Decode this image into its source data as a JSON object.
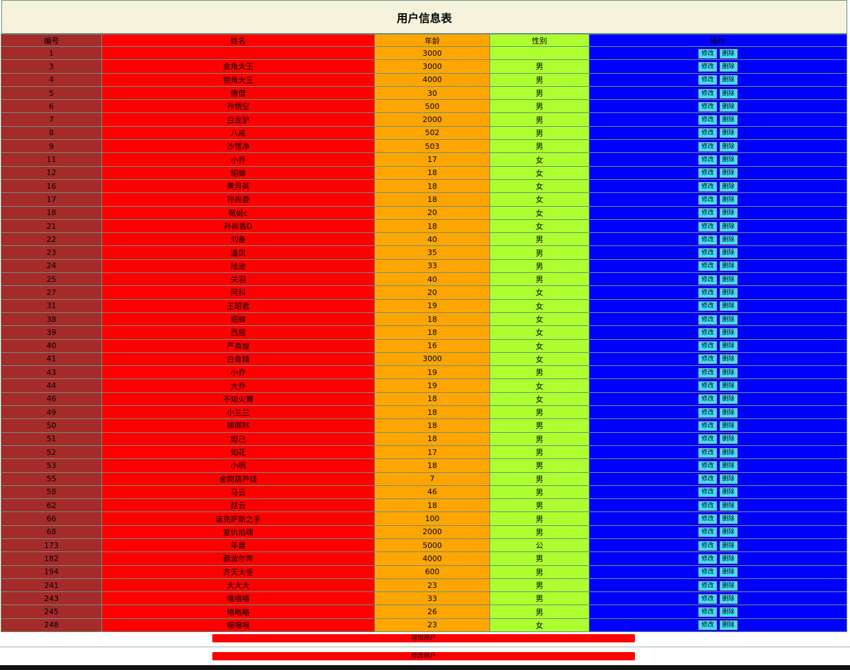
{
  "header": {
    "title": "用户信息表"
  },
  "table": {
    "columns": [
      "编号",
      "姓名",
      "年龄",
      "性别",
      "操作"
    ],
    "actions": [
      "修改",
      "删除"
    ],
    "rows": [
      [
        1,
        null,
        3000,
        null
      ],
      [
        3,
        "金角大王",
        3000,
        "男"
      ],
      [
        4,
        "银角大王",
        4000,
        "男"
      ],
      [
        5,
        "唐僧",
        30,
        "男"
      ],
      [
        6,
        "孙悟空",
        500,
        "男"
      ],
      [
        7,
        "白龙驴",
        2000,
        "男"
      ],
      [
        8,
        "八戒",
        502,
        "男"
      ],
      [
        9,
        "沙悟净",
        503,
        "男"
      ],
      [
        11,
        "小乔",
        17,
        "女"
      ],
      [
        12,
        "貂蝉",
        18,
        "女"
      ],
      [
        16,
        "黄月英",
        18,
        "女"
      ],
      [
        17,
        "孙尚香",
        18,
        "女"
      ],
      [
        18,
        "甄姬c",
        20,
        "女"
      ],
      [
        21,
        "孙尚香D",
        18,
        "女"
      ],
      [
        22,
        "刘备",
        40,
        "男"
      ],
      [
        23,
        "潘凤",
        35,
        "男"
      ],
      [
        24,
        "陆逊",
        33,
        "男"
      ],
      [
        25,
        "关羽",
        40,
        "男"
      ],
      [
        27,
        "阿科",
        20,
        "女"
      ],
      [
        31,
        "王昭君",
        19,
        "女"
      ],
      [
        38,
        "貂蝉",
        18,
        "女"
      ],
      [
        39,
        "西施",
        18,
        "女"
      ],
      [
        40,
        "严真煌",
        16,
        "女"
      ],
      [
        41,
        "白骨精",
        3000,
        "女"
      ],
      [
        43,
        "小乔",
        19,
        "男"
      ],
      [
        44,
        "大乔",
        19,
        "女"
      ],
      [
        46,
        "不知火舞",
        18,
        "女"
      ],
      [
        49,
        "小兰兰",
        18,
        "男"
      ],
      [
        50,
        "柳卿林",
        18,
        "男"
      ],
      [
        51,
        "妲己",
        18,
        "男"
      ],
      [
        52,
        "如花",
        17,
        "男"
      ],
      [
        53,
        "小明",
        18,
        "男"
      ],
      [
        55,
        "金刚葫芦娃",
        7,
        "男"
      ],
      [
        58,
        "马云",
        46,
        "男"
      ],
      [
        62,
        "赵云",
        18,
        "男"
      ],
      [
        66,
        "诺克萨斯之手",
        100,
        "男"
      ],
      [
        68,
        "复仇焰魂",
        2000,
        "男"
      ],
      [
        173,
        "年兽",
        5000,
        "公"
      ],
      [
        182,
        "霸波尔奔",
        4000,
        "男"
      ],
      [
        194,
        "齐天大圣",
        600,
        "男"
      ],
      [
        241,
        "大大大",
        23,
        "男"
      ],
      [
        243,
        "嘻嘻嘻",
        33,
        "男"
      ],
      [
        245,
        "略略略",
        26,
        "男"
      ],
      [
        248,
        "嘎嘎嘎",
        23,
        "女"
      ]
    ]
  },
  "footer": {
    "add": "增加用户",
    "edit": "修改用户"
  }
}
